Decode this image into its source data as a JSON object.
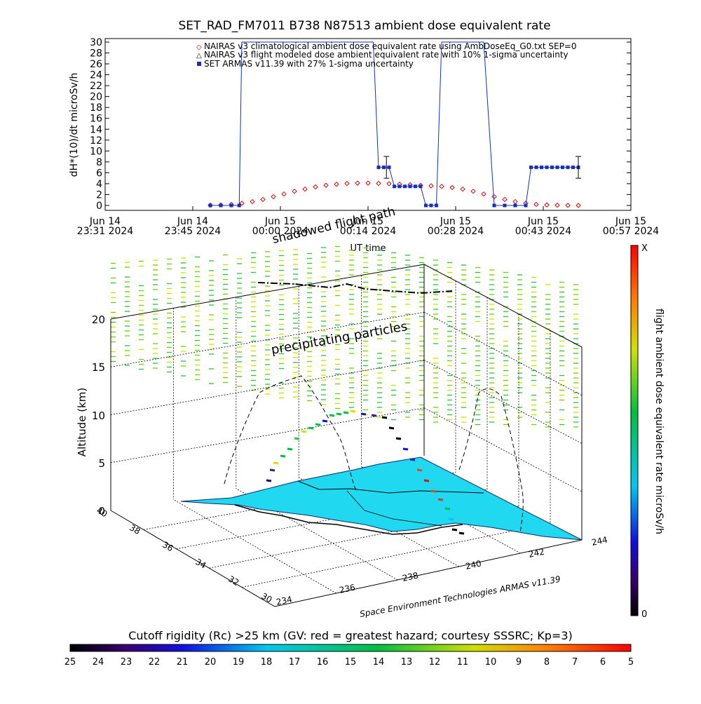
{
  "chart_data": [
    {
      "type": "line",
      "title": "SET_RAD_FM7011  B738 N87513 ambient dose equivalent rate",
      "xlabel": "UT time",
      "ylabel": "dH*(10)/dt microSv/h",
      "ylim": [
        0,
        30
      ],
      "yticks": [
        "0",
        "2",
        "4",
        "6",
        "8",
        "10",
        "12",
        "14",
        "16",
        "18",
        "20",
        "22",
        "24",
        "26",
        "28",
        "30"
      ],
      "xticks": [
        {
          "l1": "Jun 14",
          "l2": "23:31 2024"
        },
        {
          "l1": "Jun 14",
          "l2": "23:45 2024"
        },
        {
          "l1": "Jun 15",
          "l2": "00:00 2024"
        },
        {
          "l1": "Jun 15",
          "l2": "00:14 2024"
        },
        {
          "l1": "Jun 15",
          "l2": "00:28 2024"
        },
        {
          "l1": "Jun 15",
          "l2": "00:43 2024"
        },
        {
          "l1": "Jun 15",
          "l2": "00:57 2024"
        }
      ],
      "legend": [
        "NAIRAS v3 climatological ambient dose equivalent rate using AmbDoseEq_G0.txt SEP=0",
        "NAIRAS v3 flight modeled dose ambient equivalent rate with 10% 1-sigma uncertainty",
        "SET ARMAS v11.39 with 27% 1-sigma uncertainty"
      ],
      "series": [
        {
          "name": "NAIRAS v3 climatological ambient dose equivalent rate using AmbDoseEq_G0.txt SEP=0",
          "x": [
            0.2,
            0.22,
            0.24,
            0.26,
            0.28,
            0.3,
            0.32,
            0.34,
            0.36,
            0.38,
            0.4,
            0.42,
            0.44,
            0.46,
            0.48,
            0.5,
            0.52,
            0.54,
            0.56,
            0.58,
            0.6,
            0.62,
            0.64,
            0.66,
            0.68,
            0.7,
            0.72,
            0.74,
            0.76,
            0.78,
            0.8,
            0.82,
            0.84,
            0.86,
            0.88,
            0.9
          ],
          "y": [
            0.05,
            0.1,
            0.2,
            0.4,
            0.7,
            1.1,
            1.6,
            2.1,
            2.6,
            3.0,
            3.4,
            3.7,
            3.9,
            4.05,
            4.1,
            4.1,
            4.05,
            4.0,
            3.9,
            3.8,
            3.7,
            3.6,
            3.5,
            3.3,
            3.0,
            2.6,
            2.1,
            1.6,
            1.1,
            0.7,
            0.4,
            0.2,
            0.1,
            0.05,
            0.02,
            0.0
          ]
        },
        {
          "name": "SET ARMAS v11.39 with 27% 1-sigma uncertainty",
          "x": [
            0.2,
            0.22,
            0.24,
            0.255,
            0.26,
            0.51,
            0.52,
            0.53,
            0.54,
            0.55,
            0.56,
            0.57,
            0.58,
            0.59,
            0.6,
            0.61,
            0.62,
            0.63,
            0.64,
            0.645,
            0.65,
            0.72,
            0.74,
            0.76,
            0.78,
            0.8,
            0.81,
            0.82,
            0.83,
            0.84,
            0.85,
            0.86,
            0.87,
            0.88,
            0.89,
            0.9
          ],
          "y": [
            0,
            0,
            0,
            0,
            30,
            30,
            7,
            7,
            7,
            3.5,
            3.5,
            3.5,
            3.5,
            3.5,
            3.5,
            0,
            0,
            0,
            30,
            30,
            30,
            30,
            0,
            0,
            0,
            0,
            7,
            7,
            7,
            7,
            7,
            7,
            7,
            7,
            7,
            7
          ]
        }
      ],
      "errorbars": [
        {
          "x": 0.535,
          "y": 7,
          "lo": 5,
          "hi": 9
        },
        {
          "x": 0.9,
          "y": 7,
          "lo": 5,
          "hi": 9
        }
      ]
    },
    {
      "type": "scatter",
      "title": "",
      "zlabel": "Altitude (km)",
      "zticks": [
        "0",
        "5",
        "10",
        "15",
        "20"
      ],
      "lat_ticks": [
        "30",
        "32",
        "34",
        "36",
        "38",
        "40"
      ],
      "lon_ticks": [
        "234",
        "236",
        "238",
        "240",
        "242",
        "244"
      ],
      "annotations": [
        "precipitating particles",
        "shadowed flight path",
        "Space Environment Technologies ARMAS v11.39"
      ],
      "colorbar_label": "flight ambient dose equivalent rate microSv/h",
      "colorbar_top": "X",
      "colorbar_bottom": "0"
    },
    {
      "type": "heatmap",
      "title": "Cutoff rigidity (Rc) >25 km (GV: red = greatest hazard; courtesy SSSRC; Kp=3)",
      "ticks": [
        "25",
        "24",
        "23",
        "22",
        "21",
        "20",
        "19",
        "18",
        "17",
        "16",
        "15",
        "14",
        "13",
        "12",
        "11",
        "10",
        "9",
        "8",
        "7",
        "6",
        "5"
      ]
    }
  ]
}
